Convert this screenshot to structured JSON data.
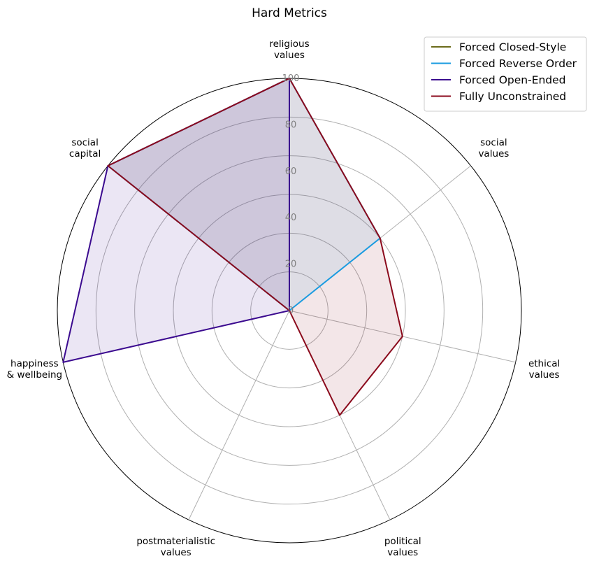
{
  "chart_data": {
    "type": "radar",
    "title": "Hard Metrics",
    "categories": [
      [
        "religious",
        "values"
      ],
      [
        "social",
        "values"
      ],
      [
        "ethical",
        "values"
      ],
      [
        "political",
        "values"
      ],
      [
        "postmaterialistic",
        "values"
      ],
      [
        "happiness",
        "& wellbeing"
      ],
      [
        "social",
        "capital"
      ]
    ],
    "rlim": [
      0,
      100
    ],
    "r_ticks": [
      0,
      20,
      40,
      60,
      80,
      100
    ],
    "grid": true,
    "legend_position": "top-right",
    "series": [
      {
        "name": "Forced Closed-Style",
        "color": "#6b6b1a",
        "values": [
          0,
          0,
          0,
          0,
          0,
          0,
          0
        ]
      },
      {
        "name": "Forced Reverse Order",
        "color": "#1a9be0",
        "values": [
          100,
          50,
          0,
          0,
          0,
          0,
          100
        ]
      },
      {
        "name": "Forced Open-Ended",
        "color": "#3b0a8f",
        "values": [
          100,
          0,
          0,
          0,
          0,
          100,
          100
        ]
      },
      {
        "name": "Fully Unconstrained",
        "color": "#8b0a1c",
        "values": [
          100,
          50,
          50,
          50,
          0,
          0,
          100
        ]
      }
    ]
  }
}
